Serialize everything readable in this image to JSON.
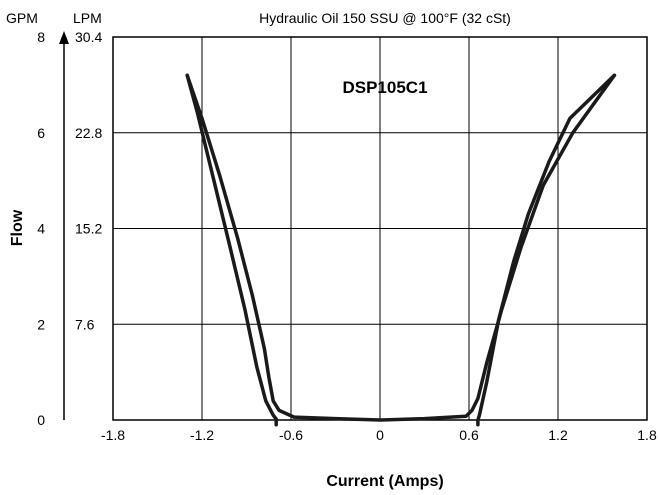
{
  "chart_data": {
    "type": "line",
    "title": "Hydraulic Oil 150 SSU @ 100°F (32 cSt)",
    "xlabel": "Current (Amps)",
    "ylabel": "Flow",
    "y_unit_left": "GPM",
    "y_unit_right": "LPM",
    "annotation": "DSP105C1",
    "xlim": [
      -1.8,
      1.8
    ],
    "ylim": [
      0,
      8
    ],
    "x_ticks": [
      "-1.8",
      "-1.2",
      "-0.6",
      "0",
      "0.6",
      "1.2",
      "1.8"
    ],
    "y_ticks_gpm": [
      "0",
      "2",
      "4",
      "6",
      "8"
    ],
    "y_ticks_lpm": [
      "7.6",
      "15.2",
      "22.8",
      "30.4"
    ],
    "grid": true,
    "line_color": "#1a1a1a",
    "series": [
      {
        "x": [
          -1.3,
          -1.2,
          -1.08,
          -0.96,
          -0.86,
          -0.78,
          -0.75,
          -0.72,
          -0.68,
          -0.58,
          -0.3,
          0,
          0.3,
          0.58,
          0.62,
          0.66,
          0.72,
          0.82,
          0.95,
          1.1,
          1.3,
          1.58
        ],
        "y": [
          7.2,
          6.3,
          5.1,
          3.8,
          2.6,
          1.5,
          0.9,
          0.4,
          0.2,
          0.06,
          0.03,
          0,
          0.03,
          0.08,
          0.2,
          0.45,
          1.2,
          2.3,
          3.6,
          4.9,
          6.0,
          7.2
        ]
      },
      {
        "x": [
          -1.3,
          -1.23,
          -1.12,
          -1.01,
          -0.91,
          -0.83,
          -0.77,
          -0.72,
          -0.7,
          -0.7,
          -0.7
        ],
        "y": [
          7.2,
          6.4,
          5.0,
          3.6,
          2.3,
          1.1,
          0.4,
          0.1,
          0.02,
          0,
          -0.1
        ]
      },
      {
        "x": [
          0.66,
          0.66,
          0.67,
          0.72,
          0.8,
          0.9,
          1.0,
          1.14,
          1.28,
          1.58
        ],
        "y": [
          -0.1,
          0,
          0.1,
          0.8,
          2.1,
          3.3,
          4.3,
          5.4,
          6.3,
          7.2
        ]
      }
    ]
  }
}
